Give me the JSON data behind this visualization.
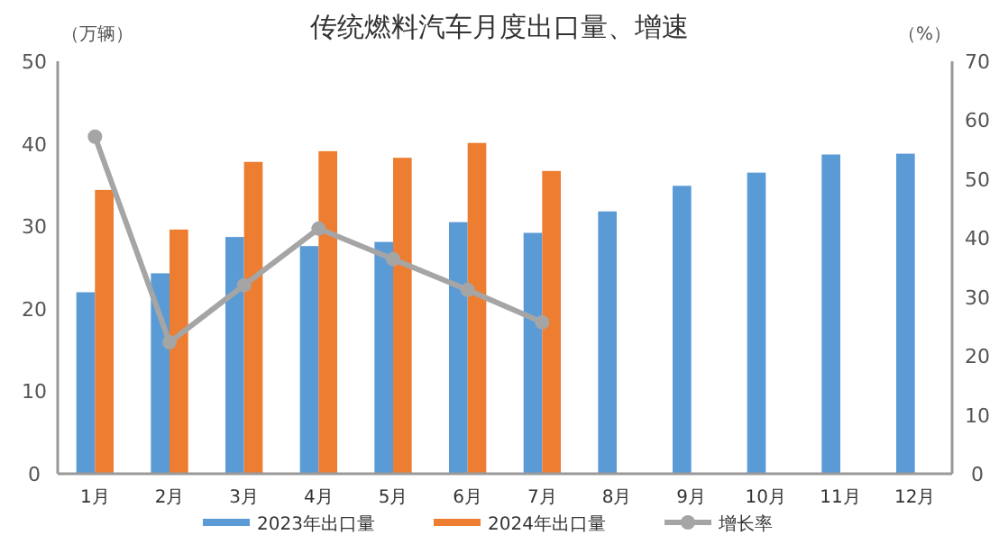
{
  "chart_data": {
    "type": "bar",
    "title": "传统燃料汽车月度出口量、增速",
    "ylabel": "（万辆）",
    "y2label": "（%）",
    "categories": [
      "1月",
      "2月",
      "3月",
      "4月",
      "5月",
      "6月",
      "7月",
      "8月",
      "9月",
      "10月",
      "11月",
      "12月"
    ],
    "series": [
      {
        "name": "2023年出口量",
        "color": "#5b9bd5",
        "values": [
          22,
          24.3,
          28.7,
          27.6,
          28.1,
          30.5,
          29.2,
          31.8,
          34.9,
          36.5,
          38.7,
          38.8
        ]
      },
      {
        "name": "2024年出口量",
        "color": "#ed7d31",
        "values": [
          34.4,
          29.6,
          37.8,
          39.1,
          38.3,
          40.1,
          36.7,
          null,
          null,
          null,
          null,
          null
        ]
      },
      {
        "name": "增长率",
        "type": "line",
        "axis": "y2",
        "color": "#a5a5a5",
        "marker": "circle",
        "values": [
          57.2,
          22.3,
          32,
          41.6,
          36.4,
          31.2,
          25.7,
          null,
          null,
          null,
          null,
          null
        ]
      }
    ],
    "ylim": [
      0,
      50
    ],
    "yticks": [
      0,
      10,
      20,
      30,
      40,
      50
    ],
    "y2lim": [
      0,
      70
    ],
    "y2ticks": [
      0,
      10,
      20,
      30,
      40,
      50,
      60,
      70
    ],
    "grid": false,
    "legend": "bottom"
  }
}
